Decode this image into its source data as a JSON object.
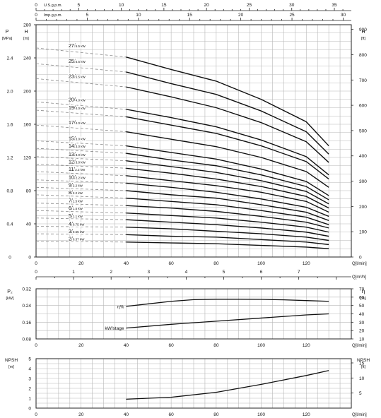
{
  "chart_data": [
    {
      "type": "line",
      "panel": "head",
      "top_axes": {
        "usgpm": {
          "label": "U.S.g.p.m.",
          "ticks": [
            0,
            5,
            10,
            15,
            20,
            25,
            30,
            35
          ]
        },
        "impgpm": {
          "label": "Imp.g.p.m.",
          "ticks": [
            0,
            5,
            10,
            15,
            20,
            25,
            30
          ]
        }
      },
      "xlabel": "Q[l/min]",
      "xlim": [
        0,
        140
      ],
      "xticks": [
        0,
        20,
        40,
        60,
        80,
        100,
        120
      ],
      "xlabel2": "Q[m³/h]",
      "xticks2": [
        0,
        1,
        2,
        3,
        4,
        5,
        6,
        7
      ],
      "y_pressure": {
        "unit_label": "P",
        "unit": "[MPa]",
        "ticks": [
          "0",
          "0.4",
          "0.8",
          "1.2",
          "1.6",
          "2.0",
          "2.4"
        ]
      },
      "y_head": {
        "unit_label": "H",
        "unit": "[m]",
        "ylim": [
          0,
          280
        ],
        "ticks": [
          0,
          40,
          80,
          120,
          160,
          200,
          240,
          280
        ]
      },
      "y_feet": {
        "unit_label": "H",
        "unit": "[ft]",
        "ticks": [
          0,
          100,
          200,
          300,
          400,
          500,
          600,
          700,
          800,
          900
        ]
      },
      "grid": true,
      "series": [
        {
          "stages": "27",
          "kw": "5.5 kW",
          "values": [
            252,
            241,
            226,
            212,
            190,
            163,
            134
          ]
        },
        {
          "stages": "25",
          "kw": "5.5 kW",
          "values": [
            233,
            223,
            209,
            196,
            176,
            151,
            124
          ]
        },
        {
          "stages": "23",
          "kw": "5.5 kW",
          "values": [
            215,
            205,
            193,
            180,
            162,
            139,
            114
          ]
        },
        {
          "stages": "20",
          "kw": "4.0 kW",
          "values": [
            187,
            178,
            168,
            157,
            141,
            121,
            99
          ]
        },
        {
          "stages": "19",
          "kw": "4.0 kW",
          "values": [
            177,
            169,
            159,
            149,
            134,
            115,
            94
          ]
        },
        {
          "stages": "17",
          "kw": "4.0 kW",
          "values": [
            159,
            151,
            142,
            133,
            120,
            103,
            84
          ]
        },
        {
          "stages": "15",
          "kw": "3.0 kW",
          "values": [
            140,
            134,
            126,
            118,
            106,
            91,
            74
          ]
        },
        {
          "stages": "14",
          "kw": "3.0 kW",
          "values": [
            131,
            125,
            117,
            110,
            99,
            85,
            69
          ]
        },
        {
          "stages": "13",
          "kw": "3.0 kW",
          "values": [
            121,
            116,
            109,
            102,
            92,
            79,
            64
          ]
        },
        {
          "stages": "12",
          "kw": "3.0 kW",
          "values": [
            112,
            107,
            101,
            94,
            85,
            73,
            59
          ]
        },
        {
          "stages": "11",
          "kw": "2.2 kW",
          "values": [
            103,
            98,
            92,
            86,
            78,
            67,
            54
          ]
        },
        {
          "stages": "10",
          "kw": "2.2 kW",
          "values": [
            93,
            89,
            84,
            78,
            70,
            60,
            49
          ]
        },
        {
          "stages": "9",
          "kw": "2.2 kW",
          "values": [
            84,
            80,
            75,
            71,
            63,
            54,
            44
          ]
        },
        {
          "stages": "8",
          "kw": "2.2 kW",
          "values": [
            75,
            71,
            67,
            63,
            56,
            48,
            39
          ]
        },
        {
          "stages": "7",
          "kw": "1.5 kW",
          "values": [
            65,
            62,
            59,
            55,
            49,
            42,
            35
          ]
        },
        {
          "stages": "6",
          "kw": "1.5 kW",
          "values": [
            56,
            53,
            50,
            47,
            42,
            36,
            30
          ]
        },
        {
          "stages": "5",
          "kw": "1.1 kW",
          "values": [
            47,
            45,
            42,
            39,
            35,
            30,
            25
          ]
        },
        {
          "stages": "4",
          "kw": "0.75 kW",
          "values": [
            37,
            36,
            34,
            31,
            28,
            24,
            20
          ]
        },
        {
          "stages": "3",
          "kw": "0.55 kW",
          "values": [
            28,
            27,
            25,
            24,
            21,
            18,
            15
          ]
        },
        {
          "stages": "2",
          "kw": "0.37 kW",
          "values": [
            19,
            18,
            17,
            16,
            14,
            12,
            10
          ]
        }
      ],
      "x": [
        0,
        40,
        60,
        80,
        100,
        120,
        130
      ]
    },
    {
      "type": "line",
      "panel": "power-efficiency",
      "xlabel": "Q[l/min]",
      "xticks": [
        0,
        20,
        40,
        60,
        80,
        100,
        120
      ],
      "y_left": {
        "unit_label": "P₂",
        "unit": "[kW]",
        "ticks": [
          "0.08",
          "0.16",
          "0.24",
          "0.32"
        ],
        "ylim": [
          0.08,
          0.32
        ]
      },
      "y_right": {
        "unit_label": "η",
        "unit": "[%]",
        "ticks": [
          10,
          20,
          30,
          40,
          50,
          60,
          70
        ],
        "ylim": [
          10,
          70
        ]
      },
      "series": [
        {
          "name": "η%",
          "axis": "right",
          "x": [
            40,
            50,
            60,
            70,
            80,
            90,
            100,
            110,
            120,
            130
          ],
          "values": [
            49,
            52,
            55,
            57,
            57.5,
            57.5,
            57.3,
            56.8,
            55.9,
            55
          ]
        },
        {
          "name": "kW/stage",
          "axis": "left",
          "x": [
            40,
            60,
            80,
            100,
            120,
            130
          ],
          "values": [
            0.132,
            0.15,
            0.165,
            0.18,
            0.195,
            0.2
          ]
        }
      ]
    },
    {
      "type": "line",
      "panel": "npsh",
      "xlabel": "Q[l/min]",
      "xticks": [
        0,
        20,
        40,
        60,
        80,
        100,
        120
      ],
      "y_left": {
        "unit_label": "NPSH",
        "unit": "[m]",
        "ticks": [
          0,
          1,
          2,
          3,
          4,
          5
        ],
        "ylim": [
          0,
          5
        ]
      },
      "y_right": {
        "unit_label": "NPSH",
        "unit": "[ft]",
        "ticks": [
          5,
          10,
          15
        ]
      },
      "series": [
        {
          "axis": "left",
          "x": [
            40,
            60,
            80,
            100,
            120,
            130
          ],
          "values": [
            0.9,
            1.1,
            1.6,
            2.4,
            3.3,
            3.8
          ]
        }
      ]
    }
  ]
}
